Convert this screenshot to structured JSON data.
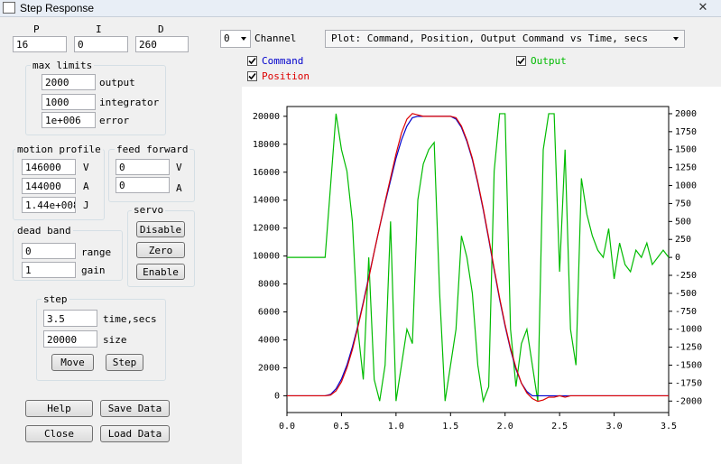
{
  "window": {
    "title": "Step Response"
  },
  "pid": {
    "labels": [
      "P",
      "I",
      "D"
    ],
    "values": [
      "16",
      "0",
      "260"
    ]
  },
  "max_limits": {
    "title": "max limits",
    "fields": [
      {
        "value": "2000",
        "label": "output"
      },
      {
        "value": "1000",
        "label": "integrator"
      },
      {
        "value": "1e+006",
        "label": "error"
      }
    ]
  },
  "motion_profile": {
    "title": "motion profile",
    "fields": [
      {
        "value": "146000",
        "label": "V"
      },
      {
        "value": "144000",
        "label": "A"
      },
      {
        "value": "1.44e+008",
        "label": "J"
      }
    ]
  },
  "feed_forward": {
    "title": "feed forward",
    "fields": [
      {
        "value": "0",
        "label": "V"
      },
      {
        "value": "0",
        "label": "A"
      }
    ]
  },
  "servo": {
    "title": "servo",
    "buttons": [
      "Disable",
      "Zero",
      "Enable"
    ]
  },
  "dead_band": {
    "title": "dead band",
    "fields": [
      {
        "value": "0",
        "label": "range"
      },
      {
        "value": "1",
        "label": "gain"
      }
    ]
  },
  "step": {
    "title": "step",
    "fields": [
      {
        "value": "3.5",
        "label": "time,secs"
      },
      {
        "value": "20000",
        "label": "size"
      }
    ],
    "buttons": [
      "Move",
      "Step"
    ]
  },
  "buttons": [
    "Help",
    "Save Data",
    "Close",
    "Load Data"
  ],
  "channel": {
    "value": "0",
    "label": "Channel"
  },
  "plot_select": "Plot: Command, Position, Output Command vs Time, secs",
  "chart_data": {
    "type": "line",
    "x": [
      0,
      0.05,
      0.1,
      0.15,
      0.2,
      0.25,
      0.3,
      0.35,
      0.4,
      0.45,
      0.5,
      0.55,
      0.6,
      0.65,
      0.7,
      0.75,
      0.8,
      0.85,
      0.9,
      0.95,
      1,
      1.05,
      1.1,
      1.15,
      1.2,
      1.25,
      1.3,
      1.35,
      1.4,
      1.45,
      1.5,
      1.55,
      1.6,
      1.65,
      1.7,
      1.75,
      1.8,
      1.85,
      1.9,
      1.95,
      2,
      2.05,
      2.1,
      2.15,
      2.2,
      2.25,
      2.3,
      2.35,
      2.4,
      2.45,
      2.5,
      2.55,
      2.6,
      2.65,
      2.7,
      2.75,
      2.8,
      2.85,
      2.9,
      2.95,
      3,
      3.05,
      3.1,
      3.15,
      3.2,
      3.25,
      3.3,
      3.35,
      3.4,
      3.45,
      3.5
    ],
    "series": [
      {
        "name": "Command",
        "color": "#0000cc",
        "values": [
          0,
          0,
          0,
          0,
          0,
          0,
          0,
          0,
          100,
          500,
          1200,
          2200,
          3500,
          5000,
          6700,
          8500,
          10300,
          12100,
          13800,
          15400,
          17000,
          18300,
          19300,
          19900,
          20000,
          20000,
          20000,
          20000,
          20000,
          20000,
          20000,
          19800,
          19200,
          18200,
          16900,
          15200,
          13300,
          11200,
          9000,
          6900,
          5000,
          3300,
          1900,
          900,
          300,
          0,
          0,
          0,
          0,
          0,
          0,
          0,
          0,
          0,
          0,
          0,
          0,
          0,
          0,
          0,
          0,
          0,
          0,
          0,
          0,
          0,
          0,
          0,
          0,
          0,
          0
        ]
      },
      {
        "name": "Position",
        "color": "#dd0000",
        "values": [
          0,
          0,
          0,
          0,
          0,
          0,
          0,
          0,
          50,
          350,
          1000,
          2000,
          3300,
          4900,
          6600,
          8400,
          10300,
          12100,
          13900,
          15600,
          17300,
          18800,
          19800,
          20200,
          20100,
          20000,
          20000,
          20000,
          20000,
          20000,
          20000,
          19900,
          19300,
          18300,
          17000,
          15300,
          13400,
          11300,
          9100,
          7000,
          5100,
          3400,
          2000,
          900,
          200,
          -200,
          -400,
          -300,
          -100,
          -100,
          0,
          -100,
          0,
          0,
          0,
          0,
          0,
          0,
          0,
          0,
          0,
          0,
          0,
          0,
          0,
          0,
          0,
          0,
          0,
          0,
          0
        ]
      },
      {
        "name": "Output",
        "color": "#00bb00",
        "axis": "y2",
        "values": [
          0,
          0,
          0,
          0,
          0,
          0,
          0,
          0,
          1000,
          2000,
          1500,
          1200,
          500,
          -1000,
          -1700,
          0,
          -1700,
          -2000,
          -1500,
          500,
          -2000,
          -1500,
          -1000,
          -1200,
          800,
          1300,
          1500,
          1600,
          -500,
          -2000,
          -1500,
          -1000,
          300,
          0,
          -500,
          -1500,
          -2000,
          -1800,
          1200,
          2000,
          2000,
          -1000,
          -1800,
          -1200,
          -1000,
          -1500,
          -2000,
          1500,
          2000,
          2000,
          -200,
          1500,
          -1000,
          -1500,
          1100,
          600,
          300,
          100,
          0,
          400,
          -300,
          200,
          -100,
          -200,
          100,
          0,
          200,
          -100,
          0,
          100,
          0
        ]
      }
    ],
    "xlim": [
      0,
      3.5
    ],
    "xticks": [
      {
        "value": 0,
        "label": "0.0"
      },
      0.5,
      {
        "value": 1,
        "label": "1.0"
      },
      1.5,
      {
        "value": 2,
        "label": "2.0"
      },
      2.5,
      {
        "value": 3,
        "label": "3.0"
      },
      3.5
    ],
    "ylim": [
      -1200,
      20700
    ],
    "yticks": [
      0,
      2000,
      4000,
      6000,
      8000,
      10000,
      12000,
      14000,
      16000,
      18000,
      20000
    ],
    "y2lim": [
      -2160,
      2100
    ],
    "y2ticks": [
      -2000,
      -1750,
      -1500,
      -1250,
      -1000,
      -750,
      -500,
      -250,
      0,
      250,
      500,
      750,
      1000,
      1250,
      1500,
      1750,
      2000
    ]
  }
}
